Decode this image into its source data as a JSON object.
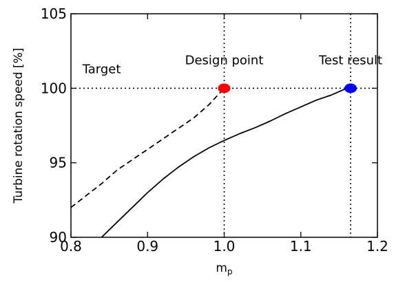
{
  "chart_data": {
    "type": "line",
    "xlabel": "m",
    "xlabel_sub": "p",
    "ylabel": "Turbine rotation speed  [%]",
    "xlim": [
      0.8,
      1.2
    ],
    "ylim": [
      90,
      105
    ],
    "xticks": [
      0.8,
      0.9,
      1.0,
      1.1,
      1.2
    ],
    "xtick_labels": [
      "0.8",
      "0.9",
      "1.0",
      "1.1",
      "1.2"
    ],
    "yticks": [
      90,
      95,
      100,
      105
    ],
    "ytick_labels": [
      "90",
      "95",
      "100",
      "105"
    ],
    "grid": false,
    "series": [
      {
        "style": "dashed",
        "color": "#000000",
        "x": [
          0.8,
          0.82,
          0.84,
          0.86,
          0.88,
          0.9,
          0.92,
          0.94,
          0.96,
          0.98,
          1.0
        ],
        "y": [
          92.0,
          92.8,
          93.6,
          94.5,
          95.2,
          95.9,
          96.6,
          97.3,
          98.0,
          98.9,
          100.0
        ]
      },
      {
        "style": "solid",
        "color": "#000000",
        "x": [
          0.84,
          0.86,
          0.88,
          0.9,
          0.92,
          0.94,
          0.96,
          0.98,
          1.0,
          1.02,
          1.04,
          1.06,
          1.08,
          1.1,
          1.12,
          1.14,
          1.16
        ],
        "y": [
          90.0,
          91.0,
          92.0,
          93.0,
          93.9,
          94.7,
          95.4,
          96.0,
          96.5,
          96.95,
          97.35,
          97.8,
          98.3,
          98.75,
          99.2,
          99.55,
          100.0
        ]
      }
    ],
    "reference_lines": [
      {
        "orientation": "horizontal",
        "value": 100,
        "style": "dotted"
      },
      {
        "orientation": "vertical",
        "value": 1.0,
        "style": "dotted"
      },
      {
        "orientation": "vertical",
        "value": 1.165,
        "style": "dotted"
      }
    ],
    "markers": [
      {
        "x": 1.0,
        "y": 100,
        "color": "#ff0000"
      },
      {
        "x": 1.165,
        "y": 100,
        "color": "#0000ff"
      }
    ],
    "annotations": [
      {
        "text": "Target",
        "x": 0.815,
        "y": 101.0
      },
      {
        "text": "Design point",
        "x": 1.0,
        "y": 101.6
      },
      {
        "text": "Test result",
        "x": 1.165,
        "y": 101.6
      }
    ]
  }
}
